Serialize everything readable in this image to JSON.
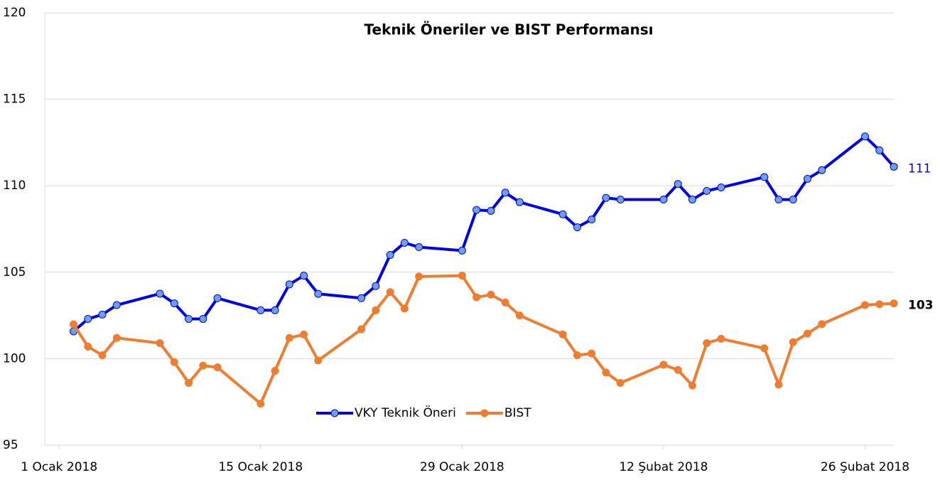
{
  "chart_data": {
    "type": "line",
    "title": "Teknik Öneriler ve BIST Performansı",
    "x": [
      "2018-01-02",
      "2018-01-03",
      "2018-01-04",
      "2018-01-05",
      "2018-01-08",
      "2018-01-09",
      "2018-01-10",
      "2018-01-11",
      "2018-01-12",
      "2018-01-15",
      "2018-01-16",
      "2018-01-17",
      "2018-01-18",
      "2018-01-19",
      "2018-01-22",
      "2018-01-23",
      "2018-01-24",
      "2018-01-25",
      "2018-01-26",
      "2018-01-29",
      "2018-01-30",
      "2018-01-31",
      "2018-02-01",
      "2018-02-02",
      "2018-02-05",
      "2018-02-06",
      "2018-02-07",
      "2018-02-08",
      "2018-02-09",
      "2018-02-12",
      "2018-02-13",
      "2018-02-14",
      "2018-02-15",
      "2018-02-16",
      "2018-02-19",
      "2018-02-20",
      "2018-02-21",
      "2018-02-22",
      "2018-02-23",
      "2018-02-26",
      "2018-02-27",
      "2018-02-28"
    ],
    "series": [
      {
        "name": "VKY Teknik Öneri",
        "color": "#0000e6",
        "marker_color": "#6fa0e0",
        "values": [
          101.58,
          102.3,
          102.55,
          103.1,
          103.76,
          103.2,
          102.3,
          102.3,
          103.5,
          102.8,
          102.8,
          104.3,
          104.8,
          103.75,
          103.5,
          104.2,
          106.0,
          106.7,
          106.45,
          106.25,
          108.6,
          108.55,
          109.6,
          109.05,
          108.35,
          107.6,
          108.05,
          109.3,
          109.2,
          109.2,
          110.1,
          109.2,
          109.7,
          109.9,
          110.5,
          109.2,
          109.2,
          110.4,
          110.9,
          112.85,
          112.05,
          111.1
        ],
        "value_labels": [
          null,
          null,
          null,
          null,
          null,
          null,
          null,
          null,
          null,
          null,
          null,
          null,
          null,
          null,
          null,
          null,
          null,
          null,
          null,
          null,
          null,
          null,
          null,
          null,
          null,
          null,
          null,
          null,
          null,
          null,
          null,
          null,
          null,
          null,
          null,
          null,
          null,
          null,
          null,
          null,
          null,
          "111"
        ]
      },
      {
        "name": "BIST",
        "color": "#ed7d31",
        "marker_color": "#ed7d31",
        "values": [
          101.99,
          100.7,
          100.2,
          101.2,
          100.9,
          99.8,
          98.6,
          99.6,
          99.5,
          97.4,
          99.3,
          101.2,
          101.4,
          99.9,
          101.7,
          102.8,
          103.85,
          102.9,
          104.75,
          104.8,
          103.55,
          103.7,
          103.25,
          102.5,
          101.4,
          100.2,
          100.3,
          99.2,
          98.6,
          99.65,
          99.35,
          98.45,
          100.9,
          101.15,
          100.6,
          98.5,
          100.95,
          101.45,
          102.0,
          103.1,
          103.15,
          103.2
        ],
        "value_labels": [
          null,
          null,
          null,
          null,
          null,
          null,
          null,
          null,
          null,
          null,
          null,
          null,
          null,
          null,
          null,
          null,
          null,
          null,
          null,
          null,
          null,
          null,
          null,
          null,
          null,
          null,
          null,
          null,
          null,
          null,
          null,
          null,
          null,
          null,
          null,
          null,
          null,
          null,
          null,
          null,
          null,
          "103"
        ]
      }
    ],
    "xlim": [
      "2017-12-31",
      "2018-02-28"
    ],
    "xticks": [
      {
        "value": "2018-01-01",
        "label": "1 Ocak 2018"
      },
      {
        "value": "2018-01-15",
        "label": "15 Ocak 2018"
      },
      {
        "value": "2018-01-29",
        "label": "29 Ocak 2018"
      },
      {
        "value": "2018-02-12",
        "label": "12 Şubat 2018"
      },
      {
        "value": "2018-02-26",
        "label": "26 Şubat 2018"
      }
    ],
    "ylim": [
      95,
      120
    ],
    "yticks": [
      95,
      100,
      105,
      110,
      115,
      120
    ],
    "grid": true,
    "legend": "bottom"
  }
}
